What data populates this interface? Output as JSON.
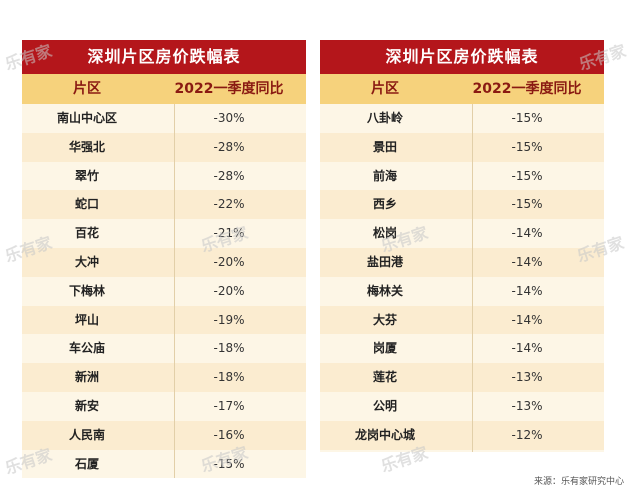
{
  "watermark": "乐有家",
  "source": "来源：乐有家研究中心",
  "left_table": {
    "title": "深圳片区房价跌幅表",
    "col1": "片区",
    "col2": "2022一季度同比",
    "rows": [
      {
        "area": "南山中心区",
        "change": "-30%"
      },
      {
        "area": "华强北",
        "change": "-28%"
      },
      {
        "area": "翠竹",
        "change": "-28%"
      },
      {
        "area": "蛇口",
        "change": "-22%"
      },
      {
        "area": "百花",
        "change": "-21%"
      },
      {
        "area": "大冲",
        "change": "-20%"
      },
      {
        "area": "下梅林",
        "change": "-20%"
      },
      {
        "area": "坪山",
        "change": "-19%"
      },
      {
        "area": "车公庙",
        "change": "-18%"
      },
      {
        "area": "新洲",
        "change": "-18%"
      },
      {
        "area": "新安",
        "change": "-17%"
      },
      {
        "area": "人民南",
        "change": "-16%"
      },
      {
        "area": "石厦",
        "change": "-15%"
      }
    ]
  },
  "right_table": {
    "title": "深圳片区房价跌幅表",
    "col1": "片区",
    "col2": "2022一季度同比",
    "rows": [
      {
        "area": "八卦岭",
        "change": "-15%"
      },
      {
        "area": "景田",
        "change": "-15%"
      },
      {
        "area": "前海",
        "change": "-15%"
      },
      {
        "area": "西乡",
        "change": "-15%"
      },
      {
        "area": "松岗",
        "change": "-14%"
      },
      {
        "area": "盐田港",
        "change": "-14%"
      },
      {
        "area": "梅林关",
        "change": "-14%"
      },
      {
        "area": "大芬",
        "change": "-14%"
      },
      {
        "area": "岗厦",
        "change": "-14%"
      },
      {
        "area": "莲花",
        "change": "-13%"
      },
      {
        "area": "公明",
        "change": "-13%"
      },
      {
        "area": "龙岗中心城",
        "change": "-12%"
      }
    ]
  }
}
